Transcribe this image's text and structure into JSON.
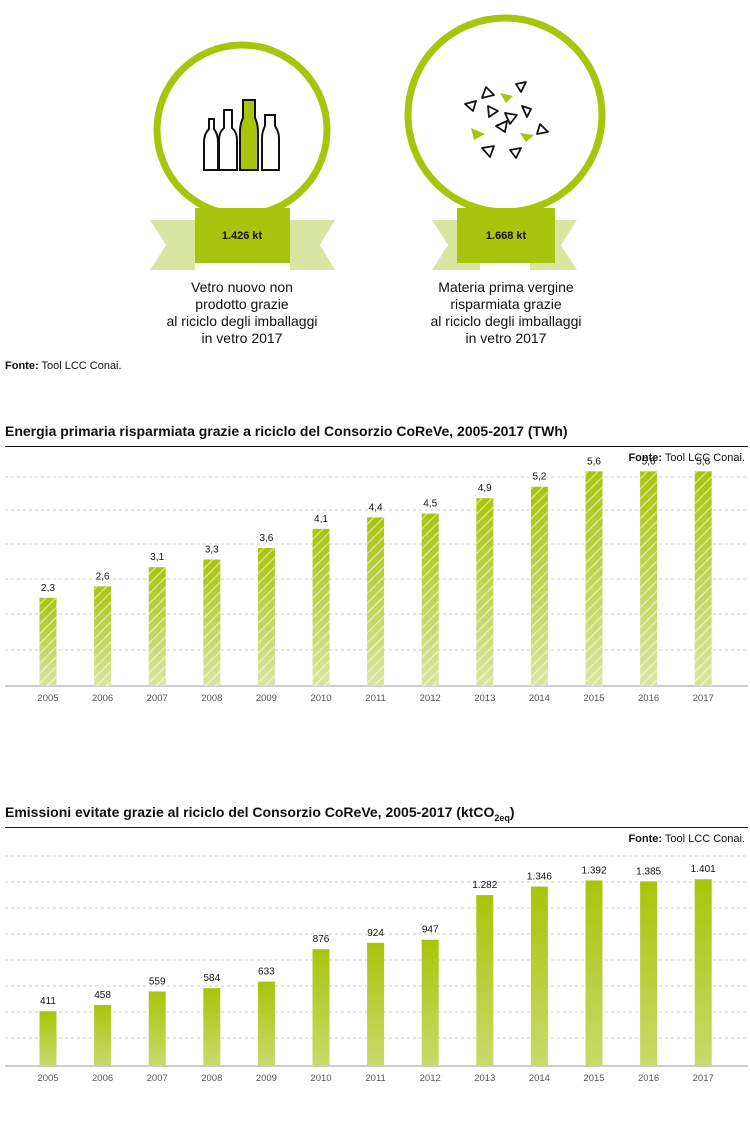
{
  "colors": {
    "accent": "#a9c40c",
    "accent_light": "#d9e6a1",
    "grid": "#cfcfcf",
    "axis": "#9a9a9a"
  },
  "infographic": {
    "items": [
      {
        "value": "1.426 kt",
        "icon": "bottles-icon",
        "caption": [
          "Vetro nuovo non",
          "prodotto grazie",
          "al riciclo degli imballaggi",
          "in vetro 2017"
        ]
      },
      {
        "value": "1.668 kt",
        "icon": "glass-shards-icon",
        "caption": [
          "Materia prima vergine",
          "risparmiata grazie",
          "al riciclo degli imballaggi",
          "in vetro 2017"
        ]
      }
    ],
    "source_label": "Fonte:",
    "source_text": " Tool LCC Conai."
  },
  "chart_data": [
    {
      "type": "bar",
      "title": "Energia primaria risparmiata grazie a riciclo del Consorzio CoReVe, 2005-2017 (TWh)",
      "source_label": "Fonte:",
      "source_text": " Tool LCC Conai.",
      "categories": [
        "2005",
        "2006",
        "2007",
        "2008",
        "2009",
        "2010",
        "2011",
        "2012",
        "2013",
        "2014",
        "2015",
        "2016",
        "2017"
      ],
      "values": [
        2.3,
        2.6,
        3.1,
        3.3,
        3.6,
        4.1,
        4.4,
        4.5,
        4.9,
        5.2,
        5.6,
        5.6,
        5.6
      ],
      "value_labels": [
        "2,3",
        "2,6",
        "3,1",
        "3,3",
        "3,6",
        "4,1",
        "4,4",
        "4,5",
        "4,9",
        "5,2",
        "5,6",
        "5,6",
        "5,6"
      ],
      "ylim": [
        0,
        6
      ],
      "grid": true,
      "style": "hatched-gradient"
    },
    {
      "type": "bar",
      "title_main": "Emissioni evitate grazie al riciclo del Consorzio CoReVe, 2005-2017 (ktCO",
      "title_sub": "2eq",
      "title_end": ")",
      "source_label": "Fonte:",
      "source_text": " Tool LCC Conai.",
      "categories": [
        "2005",
        "2006",
        "2007",
        "2008",
        "2009",
        "2010",
        "2011",
        "2012",
        "2013",
        "2014",
        "2015",
        "2016",
        "2017"
      ],
      "values": [
        411,
        458,
        559,
        584,
        633,
        876,
        924,
        947,
        1282,
        1346,
        1392,
        1385,
        1401
      ],
      "value_labels": [
        "411",
        "458",
        "559",
        "584",
        "633",
        "876",
        "924",
        "947",
        "1.282",
        "1.346",
        "1.392",
        "1.385",
        "1.401"
      ],
      "ylim": [
        0,
        1500
      ],
      "grid": true,
      "style": "gradient"
    }
  ]
}
